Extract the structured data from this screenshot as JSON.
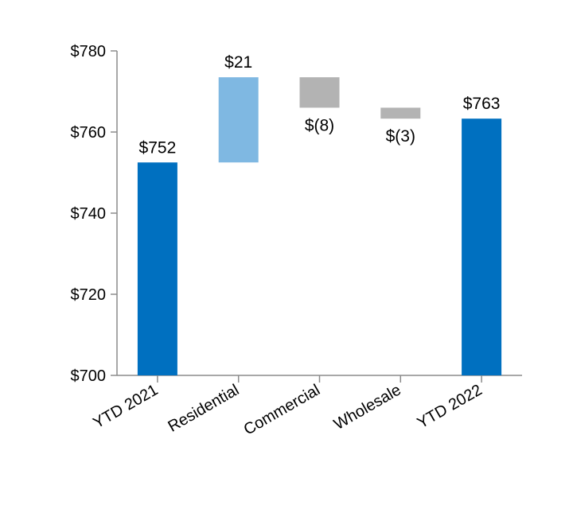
{
  "chart_data": {
    "type": "waterfall",
    "title": "",
    "xlabel": "",
    "ylabel": "",
    "ylim": [
      700,
      780
    ],
    "y_ticks": [
      {
        "value": 700,
        "label": "$700"
      },
      {
        "value": 720,
        "label": "$720"
      },
      {
        "value": 740,
        "label": "$740"
      },
      {
        "value": 760,
        "label": "$760"
      },
      {
        "value": 780,
        "label": "$780"
      }
    ],
    "grid": false,
    "legend": "none",
    "bars": [
      {
        "category": "YTD 2021",
        "kind": "total",
        "start": 700,
        "end": 752.5,
        "label": "$752",
        "color": "#0070c0"
      },
      {
        "category": "Residential",
        "kind": "increase",
        "start": 752.5,
        "end": 773.5,
        "label": "$21",
        "color": "#7fb8e2"
      },
      {
        "category": "Commercial",
        "kind": "decrease",
        "start": 773.5,
        "end": 766,
        "label": "$(8)",
        "color": "#b3b3b3"
      },
      {
        "category": "Wholesale",
        "kind": "decrease",
        "start": 766,
        "end": 763.3,
        "label": "$(3)",
        "color": "#b3b3b3"
      },
      {
        "category": "YTD 2022",
        "kind": "total",
        "start": 700,
        "end": 763.3,
        "label": "$763",
        "color": "#0070c0"
      }
    ]
  }
}
